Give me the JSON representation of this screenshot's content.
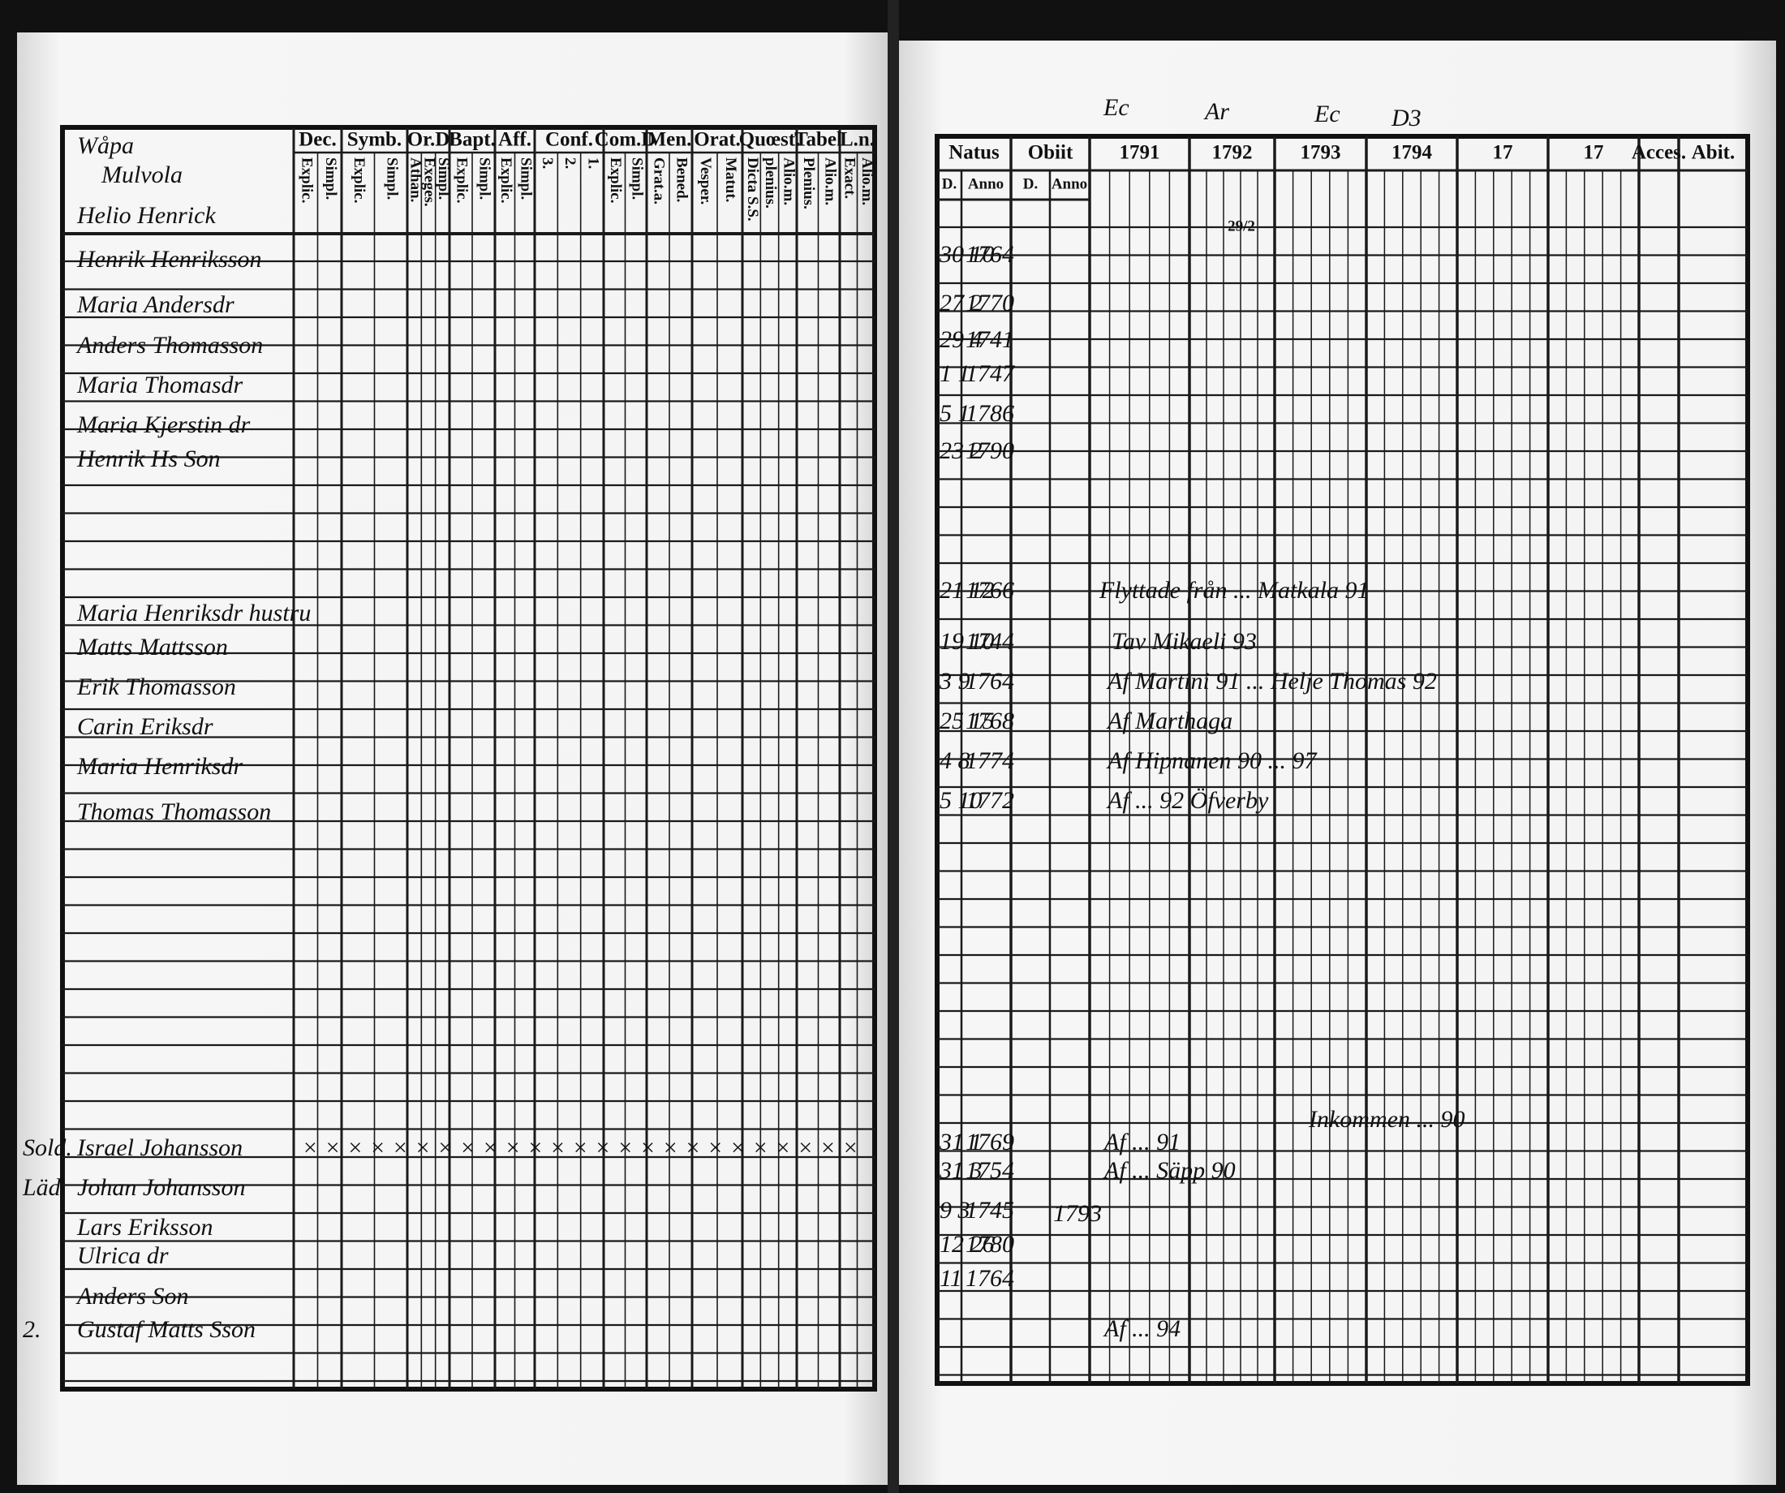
{
  "left_page": {
    "corner_label": "Wåpa",
    "village": "Mulvola",
    "homestead": "Helio Henrick",
    "columns": [
      {
        "title": "Dec.",
        "sub": [
          "Explic.",
          "Simpl."
        ]
      },
      {
        "title": "Symb.",
        "sub": [
          "Explic.",
          "Simpl."
        ]
      },
      {
        "title": "Or.D",
        "sub": [
          "Athan.",
          "Exeges.",
          "Simpl."
        ]
      },
      {
        "title": "Bapt.",
        "sub": [
          "Explic.",
          "Simpl."
        ]
      },
      {
        "title": "Aff.",
        "sub": [
          "Explic.",
          "Simpl."
        ]
      },
      {
        "title": "Conf.",
        "sub": [
          "3.",
          "2.",
          "1."
        ]
      },
      {
        "title": "Com.D",
        "sub": [
          "Explic.",
          "Simpl."
        ]
      },
      {
        "title": "Men.",
        "sub": [
          "Grat.a.",
          "Bened."
        ]
      },
      {
        "title": "Orat.",
        "sub": [
          "Vesper.",
          "Matut."
        ]
      },
      {
        "title": "Quœst.",
        "sub": [
          "Dicta S.S.",
          "plenius.",
          "Alio.m."
        ]
      },
      {
        "title": "Tabel",
        "sub": [
          "Plenius.",
          "Alio.m."
        ]
      },
      {
        "title": "L.n.",
        "sub": [
          "Exact.",
          "Alio.m."
        ]
      }
    ],
    "persons": [
      "Henrik Henriksson",
      "Maria Andersdr",
      "Anders Thomasson",
      "Maria Thomasdr",
      "Maria Kjerstin dr",
      "Henrik Hs Son",
      "Maria Henriksdr hustru",
      "Matts Mattsson",
      "Erik Thomasson",
      "Carin Eriksdr",
      "Maria Henriksdr",
      "Thomas Thomasson",
      "Israel Johansson",
      "Johan Johansson",
      "Lars Eriksson",
      "Ulrica dr",
      "Anders Son",
      "Gustaf Matts Sson"
    ],
    "side_notes": [
      "Sold.",
      "Läd.",
      "2."
    ],
    "marks_row": "× × × × ×   × × × ×   × × ×   × × ×   × × × × ×   × × ×   × ×"
  },
  "right_page": {
    "top_notes": [
      "Ec",
      "Ar",
      "Ec",
      "D3"
    ],
    "columns": [
      "Natus",
      "Obiit",
      "1791",
      "1792",
      "1793",
      "1794",
      "17",
      "17",
      "Acces.",
      "Abit."
    ],
    "subheads": [
      "D.",
      "Anno",
      "D.",
      "Anno"
    ],
    "note_1792": "29/2",
    "births": [
      {
        "day": "30 10",
        "year": "1764"
      },
      {
        "day": "27 2",
        "year": "1770"
      },
      {
        "day": "29 4",
        "year": "1741"
      },
      {
        "day": "1 1",
        "year": "1747"
      },
      {
        "day": "5 1",
        "year": "1786"
      },
      {
        "day": "23 2",
        "year": "1790"
      },
      {
        "day": "21 12",
        "year": "1766"
      },
      {
        "day": "19 10",
        "year": "1744"
      },
      {
        "day": "3 9",
        "year": "1764"
      },
      {
        "day": "25 15",
        "year": "1768"
      },
      {
        "day": "4 8",
        "year": "1774"
      },
      {
        "day": "5 10",
        "year": "1772"
      },
      {
        "day": "31 1",
        "year": "1769"
      },
      {
        "day": "31 3",
        "year": "1754"
      },
      {
        "day": "9 3",
        "year": "1745"
      },
      {
        "day": "12 26",
        "year": "1780"
      },
      {
        "day": "11",
        "year": "1764"
      }
    ],
    "remarks": [
      "Flyttade från ... Matkala 91",
      "Tav Mikaeli 93",
      "Af Martini 91 ... Helje Thomas 92",
      "Af Marthaga",
      "Af Hipnanen 90 ... 97",
      "Af ... 92 Öfverby",
      "Inkommen ... 90",
      "Af ... 91",
      "Af ... Säpp 90",
      "Af ... 94"
    ],
    "death_year": "1793"
  }
}
